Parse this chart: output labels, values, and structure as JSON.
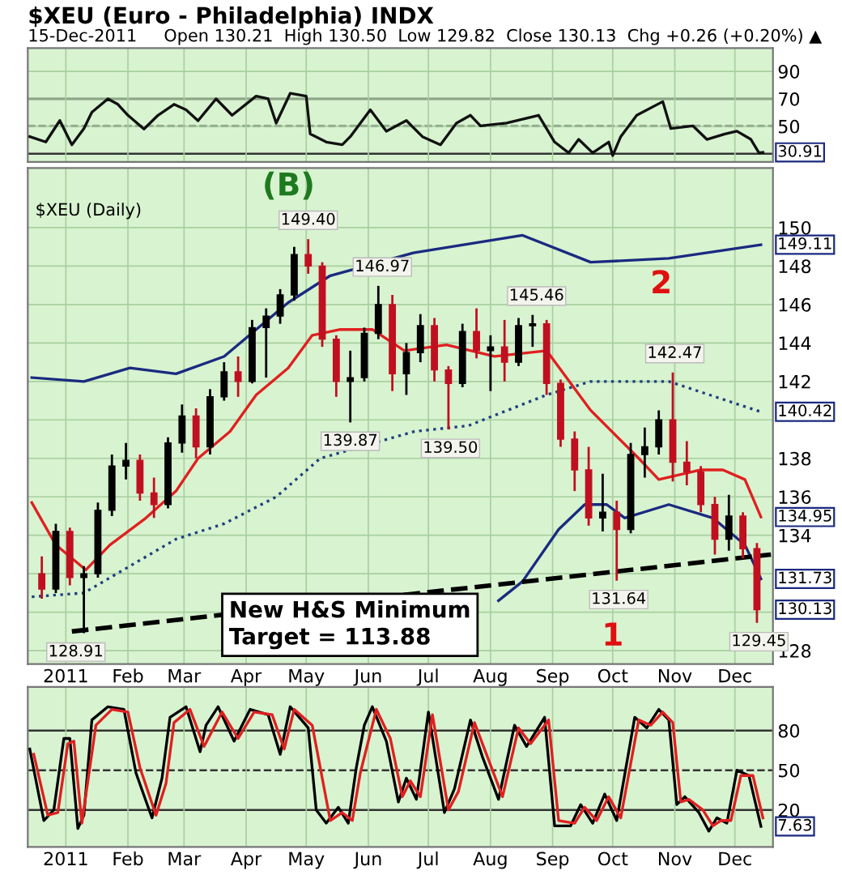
{
  "chart_data": [
    {
      "type": "line",
      "title": "$XEU (Euro - Philadelphia) INDX",
      "subtitle": "15-Dec-2011     Open 130.21  High 130.50  Low 129.82  Close 130.13  Chg +0.26 (+0.20%) ▲",
      "series": [
        {
          "color": "#111111",
          "x": [
            "2010-12-14",
            "2010-12-22",
            "2010-12-29",
            "2011-01-04",
            "2011-01-10",
            "2011-01-14",
            "2011-01-22",
            "2011-01-27",
            "2011-02-01",
            "2011-02-09",
            "2011-02-16",
            "2011-02-24",
            "2011-03-02",
            "2011-03-08",
            "2011-03-17",
            "2011-03-25",
            "2011-04-06",
            "2011-04-12",
            "2011-04-16",
            "2011-04-23",
            "2011-05-01",
            "2011-05-03",
            "2011-05-11",
            "2011-05-19",
            "2011-05-23",
            "2011-06-02",
            "2011-06-10",
            "2011-06-20",
            "2011-06-28",
            "2011-07-07",
            "2011-07-15",
            "2011-07-22",
            "2011-07-27",
            "2011-08-09",
            "2011-08-25",
            "2011-09-02",
            "2011-09-09",
            "2011-09-14",
            "2011-09-21",
            "2011-09-29",
            "2011-10-01",
            "2011-10-05",
            "2011-10-13",
            "2011-10-26",
            "2011-10-30",
            "2011-11-10",
            "2011-11-17",
            "2011-11-26",
            "2011-12-02",
            "2011-12-09",
            "2011-12-13",
            "2011-12-15"
          ],
          "values": [
            42.4,
            38.5,
            54.2,
            36.5,
            48.3,
            60.2,
            70,
            66,
            58,
            48,
            58,
            66,
            62,
            54,
            70,
            58,
            72,
            70,
            52.3,
            74,
            72,
            44.4,
            38.5,
            36.5,
            42.4,
            62,
            46.4,
            54.2,
            42.4,
            36.5,
            52.3,
            58,
            50.3,
            52.3,
            58,
            38.5,
            30.6,
            40.4,
            30.6,
            38.5,
            28.6,
            42.4,
            58,
            68,
            48.3,
            50.3,
            40.4,
            44.4,
            46.4,
            40.4,
            30.6,
            30.91
          ]
        }
      ],
      "xlim": [
        "2010-12-13",
        "2011-12-20"
      ],
      "ylim": [
        24,
        107
      ],
      "yticks": [
        50,
        70,
        90
      ],
      "xticks": [
        {
          "value": "2011-01-01",
          "label": null
        },
        {
          "value": "2011-02-01",
          "label": null
        },
        {
          "value": "2011-03-01",
          "label": null
        },
        {
          "value": "2011-04-01",
          "label": null
        },
        {
          "value": "2011-05-01",
          "label": null
        },
        {
          "value": "2011-06-01",
          "label": null
        },
        {
          "value": "2011-07-01",
          "label": null
        },
        {
          "value": "2011-08-01",
          "label": null
        },
        {
          "value": "2011-09-01",
          "label": null
        },
        {
          "value": "2011-10-01",
          "label": null
        },
        {
          "value": "2011-11-01",
          "label": null
        },
        {
          "value": "2011-12-01",
          "label": null
        }
      ],
      "tick_labels": "y",
      "grid": true,
      "ref_lines": [
        {
          "axis": "y",
          "value": 30,
          "color": "#333333",
          "line_style": "solid"
        },
        {
          "axis": "y",
          "value": 50,
          "color": "#333333",
          "line_style": "dashed"
        },
        {
          "axis": "y",
          "value": 70,
          "color": "#333333",
          "line_style": "solid"
        }
      ],
      "annotations": [
        {
          "text": "30.91",
          "x": "2011-12-15",
          "y": 30.91
        }
      ]
    },
    {
      "type": "candlestick",
      "x": [
        "2010-12-20",
        "2010-12-27",
        "2011-01-03",
        "2011-01-10",
        "2011-01-17",
        "2011-01-24",
        "2011-01-31",
        "2011-02-07",
        "2011-02-14",
        "2011-02-21",
        "2011-02-28",
        "2011-03-07",
        "2011-03-14",
        "2011-03-21",
        "2011-03-28",
        "2011-04-04",
        "2011-04-11",
        "2011-04-18",
        "2011-04-25",
        "2011-05-02",
        "2011-05-09",
        "2011-05-16",
        "2011-05-23",
        "2011-05-30",
        "2011-06-06",
        "2011-06-13",
        "2011-06-20",
        "2011-06-27",
        "2011-07-04",
        "2011-07-11",
        "2011-07-18",
        "2011-07-25",
        "2011-08-01",
        "2011-08-08",
        "2011-08-15",
        "2011-08-22",
        "2011-08-29",
        "2011-09-05",
        "2011-09-12",
        "2011-09-19",
        "2011-09-26",
        "2011-10-03",
        "2011-10-10",
        "2011-10-17",
        "2011-10-24",
        "2011-10-31",
        "2011-11-07",
        "2011-11-14",
        "2011-11-21",
        "2011-11-28",
        "2011-12-05",
        "2011-12-12"
      ],
      "ohlc": [
        [
          132.0,
          132.9,
          130.7,
          131.2
        ],
        [
          131.2,
          134.6,
          131.0,
          134.2
        ],
        [
          134.2,
          134.4,
          131.4,
          131.8
        ],
        [
          131.8,
          132.4,
          128.91,
          132.0
        ],
        [
          132.0,
          135.7,
          131.8,
          135.3
        ],
        [
          135.3,
          138.2,
          135.0,
          137.6
        ],
        [
          137.6,
          138.8,
          136.9,
          137.9
        ],
        [
          137.9,
          138.2,
          135.8,
          136.2
        ],
        [
          136.2,
          137.0,
          134.9,
          135.6
        ],
        [
          135.6,
          139.1,
          135.4,
          138.8
        ],
        [
          138.8,
          140.8,
          138.3,
          140.2
        ],
        [
          140.2,
          140.6,
          138.0,
          138.6
        ],
        [
          138.6,
          141.6,
          138.2,
          141.2
        ],
        [
          141.2,
          143.0,
          141.0,
          142.5
        ],
        [
          142.5,
          143.3,
          141.2,
          142.0
        ],
        [
          142.0,
          145.2,
          141.9,
          144.8
        ],
        [
          144.8,
          145.8,
          142.2,
          145.4
        ],
        [
          145.4,
          146.8,
          145.0,
          146.5
        ],
        [
          146.5,
          149.0,
          146.2,
          148.6
        ],
        [
          148.6,
          149.4,
          147.6,
          148.0
        ],
        [
          148.0,
          148.2,
          143.8,
          144.2
        ],
        [
          144.2,
          144.4,
          141.2,
          142.0
        ],
        [
          142.0,
          143.6,
          139.87,
          142.2
        ],
        [
          142.2,
          144.8,
          142.0,
          144.5
        ],
        [
          144.5,
          146.97,
          144.2,
          146.0
        ],
        [
          146.0,
          146.5,
          141.5,
          142.4
        ],
        [
          142.4,
          144.0,
          141.3,
          143.5
        ],
        [
          143.5,
          145.5,
          143.0,
          144.9
        ],
        [
          144.9,
          145.3,
          142.0,
          142.6
        ],
        [
          142.6,
          142.8,
          139.5,
          141.9
        ],
        [
          141.9,
          145.0,
          141.7,
          144.6
        ],
        [
          144.6,
          145.8,
          143.2,
          143.6
        ],
        [
          143.6,
          144.4,
          141.5,
          143.8
        ],
        [
          143.8,
          145.2,
          142.0,
          143.0
        ],
        [
          143.0,
          145.3,
          142.8,
          144.9
        ],
        [
          144.9,
          145.46,
          143.8,
          145.0
        ],
        [
          145.0,
          145.2,
          141.3,
          141.9
        ],
        [
          141.9,
          142.1,
          138.6,
          139.0
        ],
        [
          139.0,
          139.4,
          136.3,
          137.4
        ],
        [
          137.4,
          138.6,
          134.5,
          134.9
        ],
        [
          134.9,
          137.2,
          134.2,
          135.2
        ],
        [
          135.2,
          135.8,
          131.64,
          134.3
        ],
        [
          134.3,
          138.8,
          134.1,
          138.2
        ],
        [
          138.2,
          139.6,
          137.0,
          138.6
        ],
        [
          138.6,
          140.5,
          138.2,
          140.0
        ],
        [
          140.0,
          142.47,
          136.8,
          137.8
        ],
        [
          137.8,
          138.9,
          136.6,
          137.3
        ],
        [
          137.3,
          137.6,
          135.2,
          135.6
        ],
        [
          135.6,
          136.0,
          133.0,
          133.8
        ],
        [
          133.8,
          136.1,
          133.2,
          135.0
        ],
        [
          135.0,
          135.2,
          132.8,
          133.3
        ],
        [
          133.3,
          133.6,
          129.45,
          130.13
        ]
      ],
      "series": [
        {
          "type": "line",
          "color": "#1a2a80",
          "line_style": "solid",
          "x": [
            "2010-12-15",
            "2011-01-10",
            "2011-02-02",
            "2011-02-25",
            "2011-03-21",
            "2011-04-06",
            "2011-04-22",
            "2011-05-13",
            "2011-06-24",
            "2011-08-17",
            "2011-09-20",
            "2011-10-29",
            "2011-12-14"
          ],
          "values": [
            142.2,
            142.0,
            142.7,
            142.4,
            143.3,
            144.7,
            146.1,
            147.5,
            148.7,
            149.6,
            148.2,
            148.4,
            149.11
          ]
        },
        {
          "type": "line",
          "color": "#e02020",
          "line_style": "solid",
          "x": [
            "2010-12-15",
            "2010-12-27",
            "2011-01-11",
            "2011-01-23",
            "2011-02-10",
            "2011-02-25",
            "2011-03-08",
            "2011-03-24",
            "2011-04-06",
            "2011-04-22",
            "2011-05-04",
            "2011-05-18",
            "2011-06-03",
            "2011-06-19",
            "2011-07-10",
            "2011-08-03",
            "2011-08-29",
            "2011-09-20",
            "2011-10-14",
            "2011-10-24",
            "2011-11-14",
            "2011-11-25",
            "2011-12-06",
            "2011-12-14"
          ],
          "values": [
            135.7,
            133.5,
            132.2,
            133.5,
            134.9,
            136.3,
            138.0,
            139.4,
            141.3,
            142.7,
            144.4,
            144.7,
            144.7,
            143.6,
            143.9,
            143.3,
            143.6,
            140.5,
            138.0,
            136.9,
            137.4,
            137.4,
            136.9,
            134.95
          ]
        },
        {
          "type": "line",
          "color": "#1f3f7f",
          "line_style": "dotted",
          "x": [
            "2010-12-15",
            "2011-01-10",
            "2011-02-02",
            "2011-02-25",
            "2011-03-21",
            "2011-04-16",
            "2011-05-08",
            "2011-06-24",
            "2011-07-21",
            "2011-08-29",
            "2011-09-20",
            "2011-10-29",
            "2011-12-14"
          ],
          "values": [
            130.8,
            131.0,
            132.4,
            133.8,
            134.6,
            136.0,
            138.0,
            139.4,
            139.7,
            141.3,
            142.0,
            142.0,
            140.42
          ]
        },
        {
          "type": "line",
          "color": "#1a2a80",
          "line_style": "solid",
          "x": [
            "2011-08-05",
            "2011-08-17",
            "2011-09-04",
            "2011-09-17",
            "2011-09-28",
            "2011-10-07",
            "2011-10-29",
            "2011-11-20",
            "2011-12-06",
            "2011-12-14"
          ],
          "values": [
            130.6,
            131.6,
            134.3,
            135.6,
            135.6,
            134.9,
            135.6,
            134.9,
            133.5,
            131.73
          ]
        },
        {
          "type": "line",
          "color": "#000000",
          "line_style": "dashed",
          "x": [
            "2011-01-04",
            "2011-12-19"
          ],
          "values": [
            129.0,
            133.0
          ]
        }
      ],
      "xlim": [
        "2010-12-13",
        "2011-12-20"
      ],
      "ylim": [
        127.3,
        153.1
      ],
      "yticks": [
        128,
        {
          "value": 130,
          "label": null
        },
        {
          "value": 132,
          "label": null
        },
        134,
        136,
        138,
        {
          "value": 140,
          "label": null
        },
        142,
        144,
        146,
        148,
        150
      ],
      "xticks": [
        {
          "value": "2011-01-01",
          "label": "2011"
        },
        {
          "value": "2011-02-01",
          "label": "Feb"
        },
        {
          "value": "2011-03-01",
          "label": "Mar"
        },
        {
          "value": "2011-04-01",
          "label": "Apr"
        },
        {
          "value": "2011-05-01",
          "label": "May"
        },
        {
          "value": "2011-06-01",
          "label": "Jun"
        },
        {
          "value": "2011-07-01",
          "label": "Jul"
        },
        {
          "value": "2011-08-01",
          "label": "Aug"
        },
        {
          "value": "2011-09-01",
          "label": "Sep"
        },
        {
          "value": "2011-10-01",
          "label": "Oct"
        },
        {
          "value": "2011-11-01",
          "label": "Nov"
        },
        {
          "value": "2011-12-01",
          "label": "Dec"
        }
      ],
      "grid": true,
      "annotations": [
        "(B)",
        "2",
        "1",
        "$XEU (Daily)",
        "New H&S Minimum\nTarget = 113.88",
        {
          "text": "149.40",
          "x": "2011-05-02",
          "y": 149.4
        },
        {
          "text": "146.97",
          "x": "2011-06-08",
          "y": 146.97
        },
        {
          "text": "139.87",
          "x": "2011-05-23",
          "y": 139.87
        },
        {
          "text": "139.50",
          "x": "2011-07-12",
          "y": 139.5
        },
        {
          "text": "145.46",
          "x": "2011-08-24",
          "y": 145.46
        },
        {
          "text": "142.47",
          "x": "2011-11-01",
          "y": 142.47
        },
        {
          "text": "131.64",
          "x": "2011-10-04",
          "y": 131.64
        },
        {
          "text": "128.91",
          "x": "2011-01-06",
          "y": 128.91
        },
        {
          "text": "129.45",
          "x": "2011-12-13",
          "y": 129.45
        },
        {
          "text": "149.11",
          "x": "2011-12-15",
          "y": 149.11
        },
        {
          "text": "140.42",
          "x": "2011-12-15",
          "y": 140.42
        },
        {
          "text": "134.95",
          "x": "2011-12-15",
          "y": 134.95
        },
        {
          "text": "131.73",
          "x": "2011-12-15",
          "y": 131.73
        },
        {
          "text": "130.13",
          "x": "2011-12-15",
          "y": 130.13
        }
      ]
    },
    {
      "type": "line",
      "series": [
        {
          "color": "#000000",
          "x": [
            "2010-12-14",
            "2010-12-21",
            "2010-12-26",
            "2010-12-31",
            "2011-01-03",
            "2011-01-07",
            "2011-01-10",
            "2011-01-14",
            "2011-01-22",
            "2011-01-30",
            "2011-02-05",
            "2011-02-13",
            "2011-02-18",
            "2011-02-22",
            "2011-03-02",
            "2011-03-09",
            "2011-03-12",
            "2011-03-18",
            "2011-03-26",
            "2011-04-03",
            "2011-04-12",
            "2011-04-18",
            "2011-04-23",
            "2011-05-02",
            "2011-05-06",
            "2011-05-11",
            "2011-05-17",
            "2011-05-22",
            "2011-05-26",
            "2011-05-30",
            "2011-06-03",
            "2011-06-10",
            "2011-06-16",
            "2011-06-20",
            "2011-06-25",
            "2011-07-01",
            "2011-07-09",
            "2011-07-14",
            "2011-07-22",
            "2011-07-28",
            "2011-08-05",
            "2011-08-13",
            "2011-08-19",
            "2011-08-28",
            "2011-09-02",
            "2011-09-10",
            "2011-09-15",
            "2011-09-21",
            "2011-09-27",
            "2011-10-03",
            "2011-10-12",
            "2011-10-18",
            "2011-10-24",
            "2011-10-29",
            "2011-11-02",
            "2011-11-06",
            "2011-11-13",
            "2011-11-18",
            "2011-11-22",
            "2011-11-27",
            "2011-12-02",
            "2011-12-08",
            "2011-12-14"
          ],
          "values": [
            66,
            12,
            20,
            74,
            74,
            6,
            16,
            88,
            98,
            96,
            48,
            14,
            44,
            90,
            98,
            64,
            84,
            98,
            72,
            96,
            92,
            62,
            98,
            82,
            20,
            10,
            22,
            10,
            52,
            84,
            98,
            72,
            26,
            44,
            28,
            94,
            18,
            36,
            88,
            60,
            28,
            84,
            68,
            90,
            8,
            8,
            24,
            10,
            32,
            12,
            90,
            82,
            96,
            88,
            24,
            30,
            18,
            4,
            14,
            10,
            50,
            46,
            7.63
          ]
        },
        {
          "color": "#e02020",
          "x": [
            "2010-12-16",
            "2010-12-23",
            "2010-12-28",
            "2011-01-02",
            "2011-01-05",
            "2011-01-09",
            "2011-01-16",
            "2011-01-24",
            "2011-02-01",
            "2011-02-07",
            "2011-02-15",
            "2011-02-20",
            "2011-02-24",
            "2011-03-04",
            "2011-03-11",
            "2011-03-20",
            "2011-03-28",
            "2011-04-05",
            "2011-04-14",
            "2011-04-20",
            "2011-04-25",
            "2011-05-04",
            "2011-05-13",
            "2011-05-19",
            "2011-05-24",
            "2011-05-28",
            "2011-06-05",
            "2011-06-12",
            "2011-06-18",
            "2011-06-22",
            "2011-06-27",
            "2011-07-03",
            "2011-07-11",
            "2011-07-16",
            "2011-07-24",
            "2011-07-30",
            "2011-08-07",
            "2011-08-15",
            "2011-08-21",
            "2011-08-30",
            "2011-09-04",
            "2011-09-12",
            "2011-09-17",
            "2011-09-23",
            "2011-09-29",
            "2011-10-05",
            "2011-10-14",
            "2011-10-20",
            "2011-10-26",
            "2011-10-31",
            "2011-11-04",
            "2011-11-08",
            "2011-11-15",
            "2011-11-20",
            "2011-11-24",
            "2011-11-29",
            "2011-12-04",
            "2011-12-10",
            "2011-12-15"
          ],
          "values": [
            62,
            16,
            18,
            70,
            72,
            10,
            84,
            96,
            94,
            52,
            16,
            40,
            86,
            96,
            68,
            94,
            74,
            94,
            92,
            66,
            96,
            84,
            12,
            18,
            12,
            48,
            96,
            74,
            30,
            42,
            30,
            92,
            20,
            34,
            86,
            62,
            30,
            82,
            70,
            88,
            12,
            10,
            22,
            12,
            30,
            14,
            88,
            84,
            94,
            86,
            26,
            28,
            20,
            8,
            12,
            12,
            46,
            46,
            14
          ]
        }
      ],
      "xlim": [
        "2010-12-13",
        "2011-12-20"
      ],
      "ylim": [
        -8,
        113
      ],
      "yticks": [
        20,
        50,
        80
      ],
      "xticks": [
        {
          "value": "2011-01-01",
          "label": "2011"
        },
        {
          "value": "2011-02-01",
          "label": "Feb"
        },
        {
          "value": "2011-03-01",
          "label": "Mar"
        },
        {
          "value": "2011-04-01",
          "label": "Apr"
        },
        {
          "value": "2011-05-01",
          "label": "May"
        },
        {
          "value": "2011-06-01",
          "label": "Jun"
        },
        {
          "value": "2011-07-01",
          "label": "Jul"
        },
        {
          "value": "2011-08-01",
          "label": "Aug"
        },
        {
          "value": "2011-09-01",
          "label": "Sep"
        },
        {
          "value": "2011-10-01",
          "label": "Oct"
        },
        {
          "value": "2011-11-01",
          "label": "Nov"
        },
        {
          "value": "2011-12-01",
          "label": "Dec"
        }
      ],
      "grid": "x",
      "ref_lines": [
        {
          "axis": "y",
          "value": 20,
          "color": "#333333",
          "line_style": "solid"
        },
        {
          "axis": "y",
          "value": 50,
          "color": "#333333",
          "line_style": "dashed"
        },
        {
          "axis": "y",
          "value": 80,
          "color": "#333333",
          "line_style": "solid"
        }
      ],
      "annotations": [
        {
          "text": "7.63",
          "x": "2011-12-15",
          "y": 7.63
        }
      ]
    }
  ]
}
